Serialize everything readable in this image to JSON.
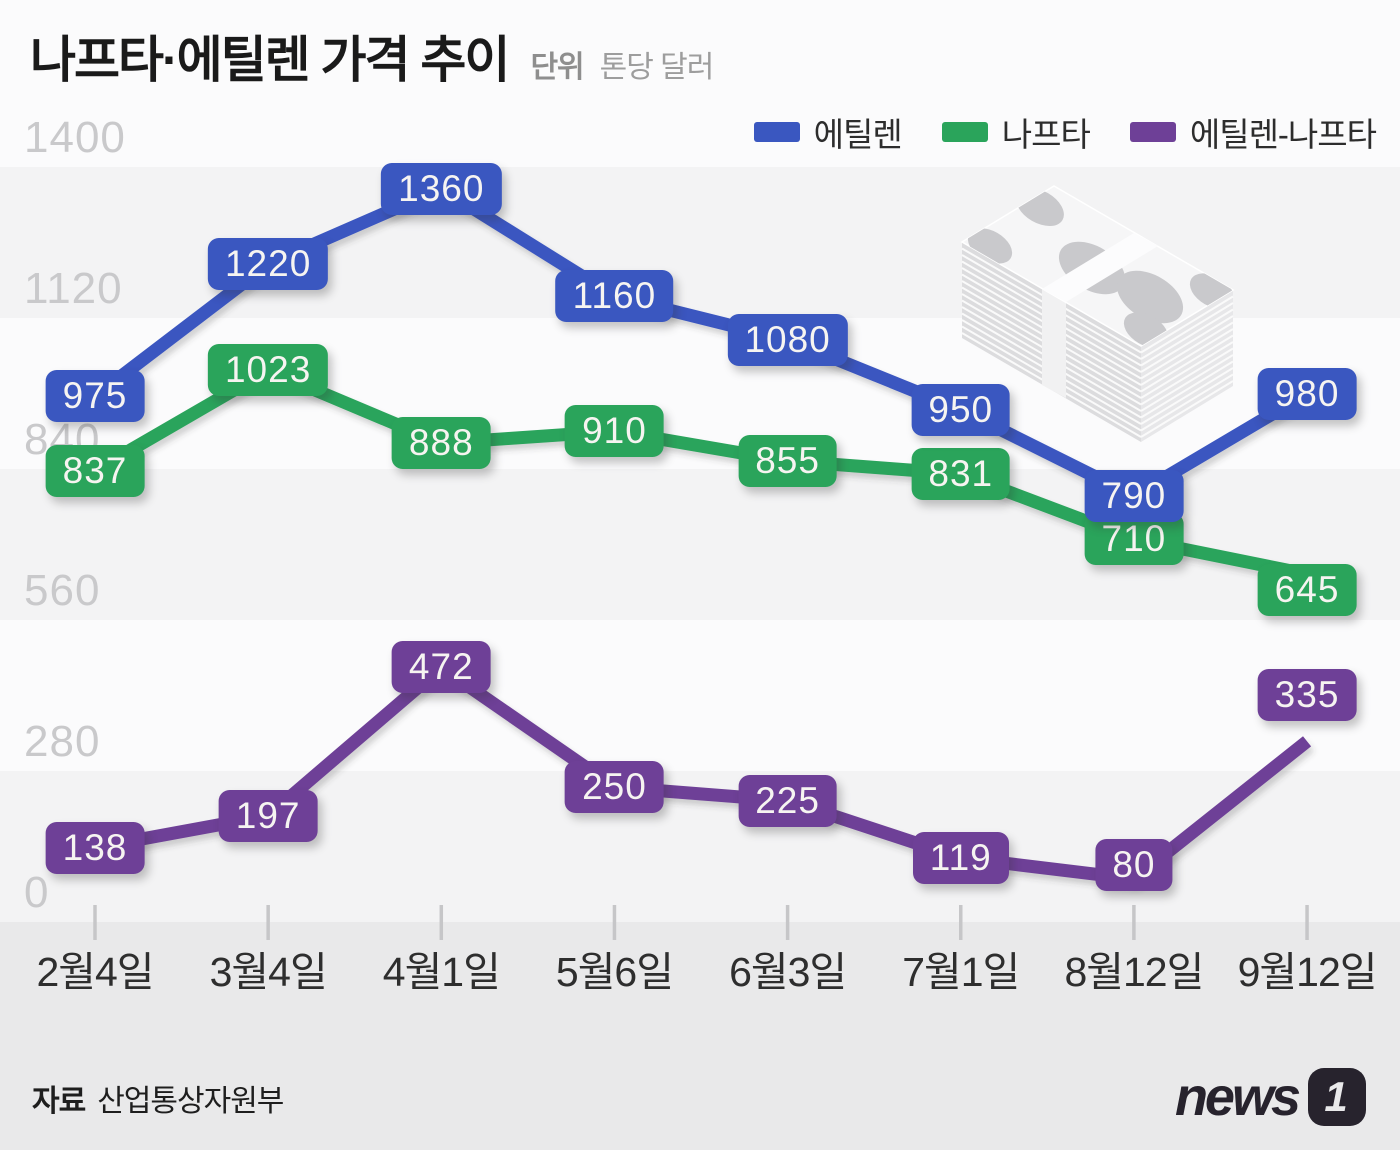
{
  "header": {
    "title": "나프타·에틸렌 가격 추이",
    "unit_label": "단위",
    "unit_value": "톤당 달러"
  },
  "legend": [
    {
      "label": "에틸렌",
      "color": "#3a57c0"
    },
    {
      "label": "나프타",
      "color": "#2aa45b"
    },
    {
      "label": "에틸렌-나프타",
      "color": "#6e4097"
    }
  ],
  "chart_data": {
    "type": "line",
    "title": "나프타·에틸렌 가격 추이",
    "ylabel": "톤당 달러",
    "categories": [
      "2월4일",
      "3월4일",
      "4월1일",
      "5월6일",
      "6월3일",
      "7월1일",
      "8월12일",
      "9월12일"
    ],
    "series": [
      {
        "name": "에틸렌",
        "color": "#3a57c0",
        "values": [
          975,
          1220,
          1360,
          1160,
          1080,
          950,
          790,
          980
        ]
      },
      {
        "name": "나프타",
        "color": "#2aa45b",
        "values": [
          837,
          1023,
          888,
          910,
          855,
          831,
          710,
          645
        ]
      },
      {
        "name": "에틸렌-나프타",
        "color": "#6e4097",
        "values": [
          138,
          197,
          472,
          250,
          225,
          119,
          80,
          335
        ]
      }
    ],
    "y_ticks": [
      1400,
      1120,
      840,
      560,
      280,
      0
    ],
    "ylim": [
      0,
      1400
    ],
    "grid": "striped-horizontal-bands",
    "legend_position": "top-right",
    "data_labels": true
  },
  "footer": {
    "source_label": "자료",
    "source_value": "산업통상자원부",
    "logo_text": "news",
    "logo_badge": "1"
  }
}
